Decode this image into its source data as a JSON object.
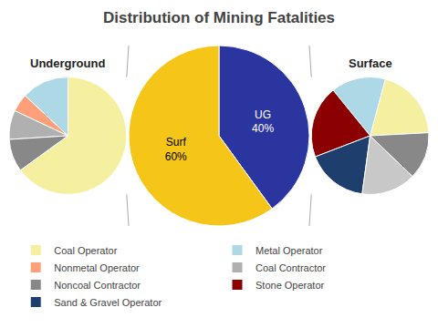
{
  "chart_data": [
    {
      "type": "pie",
      "title": "Underground",
      "categories": [
        "Coal Operator",
        "Metal Operator",
        "Nonmetal Operator",
        "Coal Contractor",
        "Noncoal Contractor"
      ],
      "values": [
        65,
        13,
        5,
        8,
        9
      ],
      "colors": [
        "#f5f0a0",
        "#add8e6",
        "#ffa07a",
        "#b0b0b0",
        "#888888"
      ],
      "legend": "bottom"
    },
    {
      "type": "pie",
      "title": "Distribution of Mining Fatalities",
      "values": [
        40,
        60
      ],
      "value_labels": [
        "UG\n40%",
        "Surf\n60%"
      ],
      "colors": [
        "#2b35a0",
        "#f5c518"
      ],
      "data_labels": true
    },
    {
      "type": "pie",
      "title": "Surface",
      "categories": [
        "Coal Operator",
        "Metal Operator",
        "Stone Operator",
        "Sand & Gravel Operator",
        "Coal Contractor",
        "Noncoal Contractor"
      ],
      "values": [
        20,
        15,
        20,
        17,
        15,
        13
      ],
      "colors": [
        "#f5f0a0",
        "#add8e6",
        "#8b0000",
        "#1e3f6e",
        "#c8c8c8",
        "#888888"
      ],
      "legend": "bottom"
    }
  ]
}
